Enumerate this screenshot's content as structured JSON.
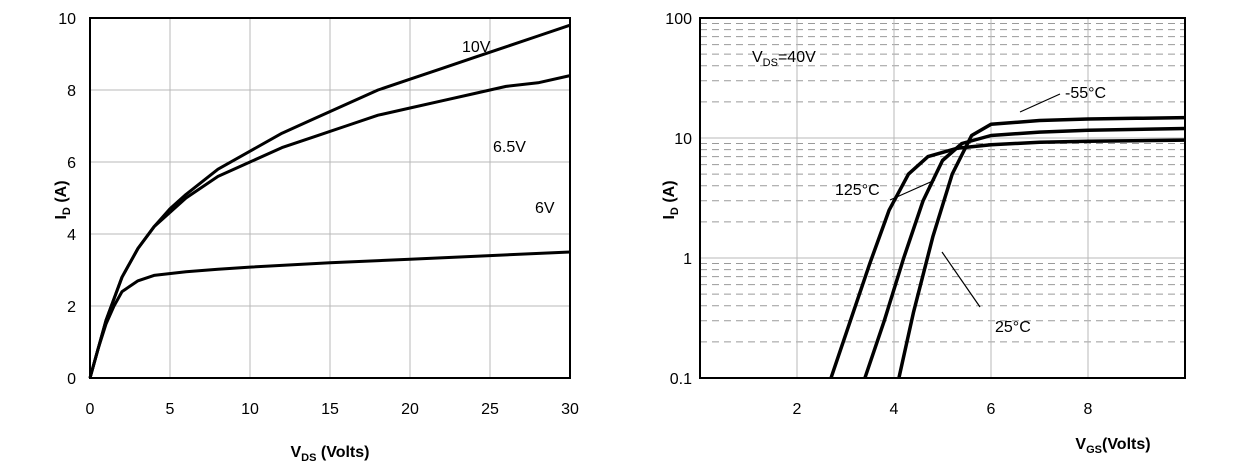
{
  "chart_data": [
    {
      "type": "line",
      "title": "",
      "xlabel": "V_DS (Volts)",
      "xlabel_main": "V",
      "xlabel_sub": "DS",
      "xlabel_rest": " (Volts)",
      "ylabel": "I_D (A)",
      "ylabel_main": "I",
      "ylabel_sub": "D",
      "ylabel_rest": " (A)",
      "xlim": [
        0,
        30
      ],
      "ylim": [
        0,
        10
      ],
      "x_ticks": [
        "0",
        "5",
        "10",
        "15",
        "20",
        "25",
        "30"
      ],
      "y_ticks": [
        "0",
        "2",
        "4",
        "6",
        "8",
        "10"
      ],
      "grid": true,
      "series": [
        {
          "name": "10V",
          "x": [
            0,
            1,
            2,
            3,
            4,
            5,
            6,
            8,
            10,
            12,
            14,
            16,
            18,
            20,
            22,
            24,
            26,
            28,
            30
          ],
          "y": [
            0,
            1.6,
            2.8,
            3.6,
            4.2,
            4.7,
            5.1,
            5.8,
            6.3,
            6.8,
            7.2,
            7.6,
            8.0,
            8.3,
            8.6,
            8.9,
            9.2,
            9.5,
            9.8
          ]
        },
        {
          "name": "6.5V",
          "x": [
            0,
            1,
            2,
            3,
            4,
            5,
            6,
            8,
            10,
            12,
            14,
            16,
            18,
            20,
            22,
            24,
            26,
            28,
            30
          ],
          "y": [
            0,
            1.6,
            2.8,
            3.6,
            4.2,
            4.6,
            5.0,
            5.6,
            6.0,
            6.4,
            6.7,
            7.0,
            7.3,
            7.5,
            7.7,
            7.9,
            8.1,
            8.2,
            8.4
          ]
        },
        {
          "name": "6V",
          "x": [
            0,
            0.5,
            1,
            1.5,
            2,
            3,
            4,
            6,
            8,
            10,
            15,
            20,
            25,
            30
          ],
          "y": [
            0,
            0.8,
            1.5,
            2.0,
            2.4,
            2.7,
            2.85,
            2.95,
            3.02,
            3.08,
            3.2,
            3.3,
            3.4,
            3.5
          ]
        }
      ],
      "annotations": [
        "10V",
        "6.5V",
        "6V"
      ]
    },
    {
      "type": "line",
      "title": "",
      "xlabel": "V_GS(Volts)",
      "xlabel_main": "V",
      "xlabel_sub": "GS",
      "xlabel_rest": "(Volts)",
      "ylabel": "I_D (A)",
      "ylabel_main": "I",
      "ylabel_sub": "D",
      "ylabel_rest": " (A)",
      "xlim": [
        0,
        10
      ],
      "ylim": [
        0.1,
        100
      ],
      "y_scale": "log",
      "x_ticks": [
        "2",
        "4",
        "6",
        "8"
      ],
      "y_ticks": [
        "0.1",
        "1",
        "10",
        "100"
      ],
      "grid": true,
      "series": [
        {
          "name": "-55°C",
          "x": [
            4.1,
            4.4,
            4.8,
            5.2,
            5.6,
            6.0,
            7.0,
            8.0,
            9.0,
            10.0
          ],
          "y": [
            0.1,
            0.35,
            1.5,
            5.0,
            10.5,
            13.0,
            14.0,
            14.4,
            14.6,
            14.8
          ]
        },
        {
          "name": "25°C",
          "x": [
            3.4,
            3.8,
            4.2,
            4.6,
            5.0,
            5.4,
            6.0,
            7.0,
            8.0,
            9.0,
            10.0
          ],
          "y": [
            0.1,
            0.3,
            1.0,
            3.0,
            6.5,
            9.0,
            10.5,
            11.2,
            11.6,
            11.8,
            12.0
          ]
        },
        {
          "name": "125°C",
          "x": [
            2.7,
            3.1,
            3.5,
            3.9,
            4.3,
            4.7,
            5.3,
            6.0,
            7.0,
            8.0,
            10.0
          ],
          "y": [
            0.1,
            0.3,
            0.9,
            2.5,
            5.0,
            7.0,
            8.2,
            8.8,
            9.2,
            9.4,
            9.6
          ]
        }
      ],
      "annotations": [
        "V_DS=40V",
        "-55°C",
        "125°C",
        "25°C"
      ],
      "note_main": "V",
      "note_sub": "DS",
      "note_rest": "=40V",
      "label_neg55": "-55°C",
      "label_125": "125°C",
      "label_25": "25°C"
    }
  ]
}
